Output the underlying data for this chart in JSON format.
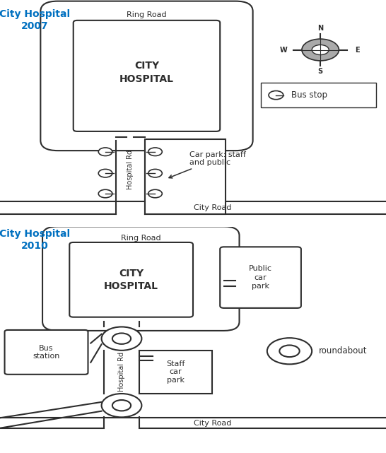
{
  "title_2007": "City Hospital\n2007",
  "title_2010": "City Hospital\n2010",
  "title_color": "#0070C0",
  "bg_color": "#ffffff",
  "line_color": "#2d2d2d",
  "hospital_label": "CITY\nHOSPITAL",
  "ring_road_label": "Ring Road",
  "city_road_label": "City Road",
  "hospital_rd_label": "Hospital Rd",
  "car_park_label_2007": "Car park: staff\nand public",
  "public_car_park_label": "Public\ncar\npark",
  "staff_car_park_label": "Staff\ncar\npark",
  "bus_station_label": "Bus\nstation",
  "bus_stop_label": "Bus stop",
  "roundabout_label": "roundabout",
  "compass_dirs": [
    "N",
    "S",
    "W",
    "E"
  ],
  "compass_angles": [
    90,
    270,
    180,
    0
  ]
}
